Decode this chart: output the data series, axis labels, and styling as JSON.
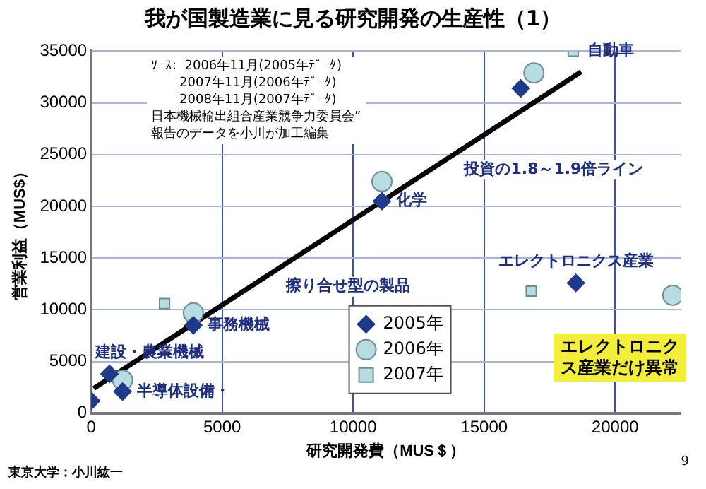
{
  "chart_data": {
    "type": "scatter",
    "title": "我が国製造業に見る研究開発の生産性（1）",
    "xlabel": "研究開発費（MUS＄）",
    "ylabel": "営業利益（MUS$）",
    "xlim": [
      0,
      22500
    ],
    "xticks": [
      0,
      5000,
      10000,
      15000,
      20000
    ],
    "ylim": [
      0,
      35000
    ],
    "yticks": [
      0,
      5000,
      10000,
      15000,
      20000,
      25000,
      30000,
      35000
    ],
    "grid": true,
    "legend": "bottom",
    "series": [
      {
        "name": "2005年",
        "color": "#1f3a8a",
        "marker": "diamond",
        "x": [
          16400,
          11100,
          18500,
          3900,
          700,
          1200,
          0
        ],
        "values": [
          31400,
          20500,
          12600,
          8500,
          3800,
          2100,
          1200
        ]
      },
      {
        "name": "2006年",
        "color": "#b7dde3",
        "marker": "circle",
        "x": [
          16900,
          11100,
          22200,
          3900,
          1200
        ],
        "values": [
          32900,
          22400,
          11400,
          9700,
          3200
        ]
      },
      {
        "name": "2007年",
        "color": "#b7dde3",
        "marker": "square",
        "x": [
          18400,
          16800,
          2800
        ],
        "values": [
          35000,
          11800,
          10600
        ]
      },
      {
        "type": "line",
        "color": "#000000",
        "marker": "none",
        "x": [
          100,
          18700
        ],
        "values": [
          2400,
          33000
        ]
      }
    ],
    "annotations": [
      "ｿｰｽ:  2006年11月(2005年ﾃﾞｰﾀ)",
      "2007年11月(2006年ﾃﾞｰﾀ)",
      "2008年11月(2007年ﾃﾞｰﾀ)",
      "日本機械輸出組合産業競争力委員会”",
      "報告のデータを小川が加工編集",
      {
        "text": "自動車",
        "x": 18400,
        "y": 35000
      },
      {
        "text": "化学",
        "x": 11100,
        "y": 20500
      },
      {
        "text": "事務機械",
        "x": 3900,
        "y": 8500
      },
      {
        "text": "建設・農業機械",
        "x": 700,
        "y": 3800
      },
      {
        "text": "半導体設備・",
        "x": 1200,
        "y": 2100
      },
      {
        "text": "エレクトロニクス産業",
        "x": 18500,
        "y": 12600
      },
      {
        "text": "投資の1.8～1.9倍ライン",
        "x": 13700,
        "y": 24900
      },
      {
        "text": "擦り合せ型の製品",
        "x": 6900,
        "y": 13600
      },
      "エレクトロニクス産業だけ異常",
      "東京大学：小川紘一",
      "9"
    ]
  }
}
